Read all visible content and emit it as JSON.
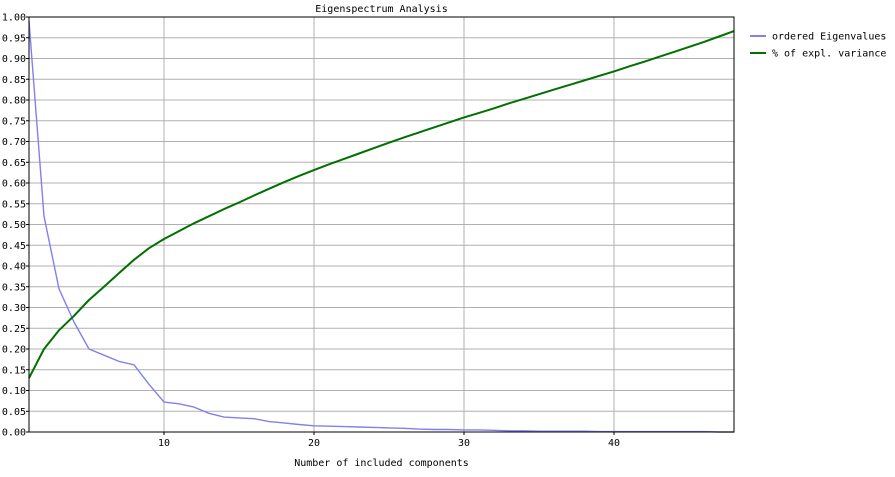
{
  "chart_data": {
    "type": "line",
    "title": "Eigenspectrum Analysis",
    "xlabel": "Number of included components",
    "ylabel": "",
    "xlim": [
      1,
      48
    ],
    "ylim": [
      0,
      1.0
    ],
    "x_ticks": [
      10,
      20,
      30,
      40
    ],
    "y_ticks": [
      0.0,
      0.05,
      0.1,
      0.15,
      0.2,
      0.25,
      0.3,
      0.35,
      0.4,
      0.45,
      0.5,
      0.55,
      0.6,
      0.65,
      0.7,
      0.75,
      0.8,
      0.85,
      0.9,
      0.95,
      1.0
    ],
    "x_tick_labels": [
      "10",
      "20",
      "30",
      "40"
    ],
    "y_tick_labels": [
      "0.00",
      "0.05",
      "0.10",
      "0.15",
      "0.20",
      "0.25",
      "0.30",
      "0.35",
      "0.40",
      "0.45",
      "0.50",
      "0.55",
      "0.60",
      "0.65",
      "0.70",
      "0.75",
      "0.80",
      "0.85",
      "0.90",
      "0.95",
      "1.00"
    ],
    "grid": true,
    "legend_position": "right",
    "x": [
      1,
      2,
      3,
      4,
      5,
      6,
      7,
      8,
      9,
      10,
      11,
      12,
      13,
      14,
      15,
      16,
      17,
      18,
      19,
      20,
      21,
      22,
      23,
      24,
      25,
      26,
      27,
      28,
      29,
      30,
      31,
      32,
      33,
      34,
      35,
      36,
      37,
      38,
      39,
      40,
      41,
      42,
      43,
      44,
      45,
      46,
      47,
      48
    ],
    "series": [
      {
        "name": "ordered Eigenvalues",
        "color": "#8080f0",
        "values": [
          0.99,
          0.52,
          0.345,
          0.265,
          0.2,
          0.185,
          0.17,
          0.162,
          0.115,
          0.072,
          0.068,
          0.06,
          0.045,
          0.036,
          0.034,
          0.032,
          0.025,
          0.022,
          0.018,
          0.015,
          0.014,
          0.013,
          0.012,
          0.011,
          0.01,
          0.009,
          0.007,
          0.006,
          0.006,
          0.005,
          0.005,
          0.004,
          0.003,
          0.003,
          0.002,
          0.002,
          0.002,
          0.002,
          0.001,
          0.001,
          0.001,
          0.001,
          0.001,
          0.001,
          0.001,
          0.001,
          0.0,
          0.0
        ]
      },
      {
        "name": "% of expl. variance",
        "color": "#007000",
        "values": [
          0.13,
          0.2,
          0.245,
          0.28,
          0.318,
          0.35,
          0.383,
          0.415,
          0.443,
          0.465,
          0.484,
          0.503,
          0.52,
          0.537,
          0.553,
          0.57,
          0.586,
          0.602,
          0.617,
          0.631,
          0.645,
          0.658,
          0.671,
          0.684,
          0.697,
          0.71,
          0.722,
          0.734,
          0.746,
          0.758,
          0.769,
          0.78,
          0.792,
          0.803,
          0.814,
          0.825,
          0.836,
          0.847,
          0.858,
          0.869,
          0.881,
          0.892,
          0.904,
          0.916,
          0.928,
          0.94,
          0.953,
          0.966
        ]
      }
    ]
  }
}
